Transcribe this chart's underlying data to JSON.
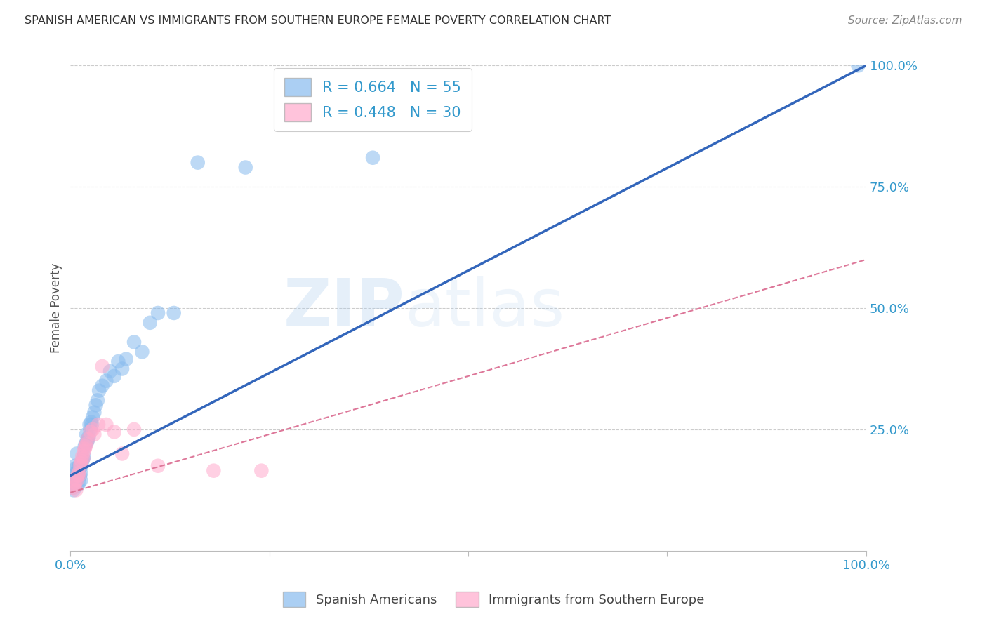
{
  "title": "SPANISH AMERICAN VS IMMIGRANTS FROM SOUTHERN EUROPE FEMALE POVERTY CORRELATION CHART",
  "source": "Source: ZipAtlas.com",
  "ylabel": "Female Poverty",
  "watermark_zip": "ZIP",
  "watermark_atlas": "atlas",
  "xlim": [
    0,
    1.0
  ],
  "ylim": [
    0,
    1.0
  ],
  "legend1_label": "R = 0.664   N = 55",
  "legend2_label": "R = 0.448   N = 30",
  "series1_color": "#88BBEE",
  "series2_color": "#FFAACC",
  "trendline1_color": "#3366BB",
  "trendline2_color": "#DD7799",
  "background_color": "#FFFFFF",
  "grid_color": "#CCCCCC",
  "title_color": "#333333",
  "source_color": "#888888",
  "ylabel_color": "#555555",
  "tick_color": "#3399CC",
  "trendline1_x0": 0.0,
  "trendline1_y0": 0.155,
  "trendline1_x1": 1.0,
  "trendline1_y1": 1.0,
  "trendline2_x0": 0.0,
  "trendline2_y0": 0.12,
  "trendline2_x1": 1.0,
  "trendline2_y1": 0.6,
  "series1_x": [
    0.003,
    0.004,
    0.005,
    0.005,
    0.006,
    0.006,
    0.007,
    0.007,
    0.008,
    0.008,
    0.009,
    0.009,
    0.01,
    0.01,
    0.011,
    0.011,
    0.012,
    0.012,
    0.013,
    0.013,
    0.014,
    0.015,
    0.016,
    0.017,
    0.018,
    0.019,
    0.02,
    0.021,
    0.022,
    0.023,
    0.024,
    0.025,
    0.026,
    0.027,
    0.028,
    0.03,
    0.032,
    0.034,
    0.036,
    0.04,
    0.045,
    0.05,
    0.055,
    0.06,
    0.065,
    0.07,
    0.08,
    0.09,
    0.1,
    0.11,
    0.13,
    0.16,
    0.22,
    0.38,
    0.99
  ],
  "series1_y": [
    0.13,
    0.125,
    0.155,
    0.145,
    0.175,
    0.135,
    0.17,
    0.145,
    0.2,
    0.155,
    0.165,
    0.135,
    0.17,
    0.155,
    0.175,
    0.14,
    0.175,
    0.155,
    0.16,
    0.145,
    0.175,
    0.185,
    0.19,
    0.195,
    0.215,
    0.22,
    0.24,
    0.225,
    0.23,
    0.235,
    0.26,
    0.25,
    0.265,
    0.26,
    0.275,
    0.285,
    0.3,
    0.31,
    0.33,
    0.34,
    0.35,
    0.37,
    0.36,
    0.39,
    0.375,
    0.395,
    0.43,
    0.41,
    0.47,
    0.49,
    0.49,
    0.8,
    0.79,
    0.81,
    1.0
  ],
  "series2_x": [
    0.004,
    0.005,
    0.006,
    0.007,
    0.008,
    0.009,
    0.01,
    0.011,
    0.012,
    0.013,
    0.014,
    0.015,
    0.016,
    0.017,
    0.018,
    0.019,
    0.02,
    0.022,
    0.025,
    0.028,
    0.03,
    0.035,
    0.04,
    0.045,
    0.055,
    0.065,
    0.08,
    0.11,
    0.18,
    0.24
  ],
  "series2_y": [
    0.13,
    0.135,
    0.14,
    0.125,
    0.145,
    0.155,
    0.16,
    0.155,
    0.175,
    0.18,
    0.185,
    0.195,
    0.19,
    0.205,
    0.21,
    0.215,
    0.22,
    0.23,
    0.245,
    0.25,
    0.24,
    0.26,
    0.38,
    0.26,
    0.245,
    0.2,
    0.25,
    0.175,
    0.165,
    0.165
  ]
}
